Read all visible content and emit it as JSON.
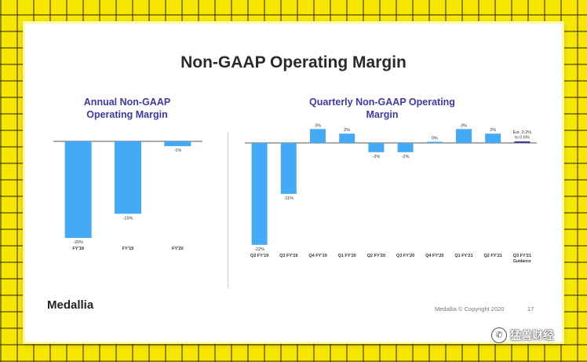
{
  "slide": {
    "title": "Non-GAAP Operating Margin",
    "logo": "Medallia",
    "footer": "Medallia © Copyright 2020",
    "page_number": "17"
  },
  "watermark": {
    "text": "猛兽财经",
    "icon": "wechat-icon"
  },
  "colors": {
    "bar": "#45aaf5",
    "guidance_bar": "#3c3aa8",
    "title_purple": "#3c3aa8"
  },
  "chart_data": [
    {
      "type": "bar",
      "title": "Annual Non-GAAP Operating Margin",
      "title_lines": [
        "Annual Non-GAAP",
        "Operating Margin"
      ],
      "categories": [
        "FY'18",
        "FY'19",
        "FY'20"
      ],
      "values": [
        -20,
        -15,
        -1
      ],
      "labels": [
        "-20%",
        "-15%",
        "-1%"
      ],
      "unit": "%",
      "ylim": [
        -20,
        0
      ],
      "grid": false
    },
    {
      "type": "bar",
      "title": "Quarterly Non-GAAP Operating Margin",
      "title_lines": [
        "Quarterly Non-GAAP Operating",
        "Margin"
      ],
      "categories": [
        "Q2 FY'19",
        "Q3 FY'19",
        "Q4 FY'19",
        "Q1 FY'20",
        "Q2 FY'20",
        "Q3 FY'20",
        "Q4 FY'20",
        "Q1 FY'21",
        "Q2 FY'21",
        "Q3 FY'21"
      ],
      "category_sublabels": [
        "",
        "",
        "",
        "",
        "",
        "",
        "",
        "",
        "",
        "Guidance"
      ],
      "values": [
        -22,
        -11,
        3,
        2,
        -2,
        -2,
        0,
        3,
        2,
        0.4
      ],
      "labels": [
        "-22%",
        "-11%",
        "3%",
        "2%",
        "-2%",
        "-2%",
        "0%",
        "3%",
        "2%",
        "Est. 0.2%\nto 0.6%"
      ],
      "highlight_index": 9,
      "unit": "%",
      "ylim": [
        -22,
        3
      ],
      "grid": false
    }
  ]
}
